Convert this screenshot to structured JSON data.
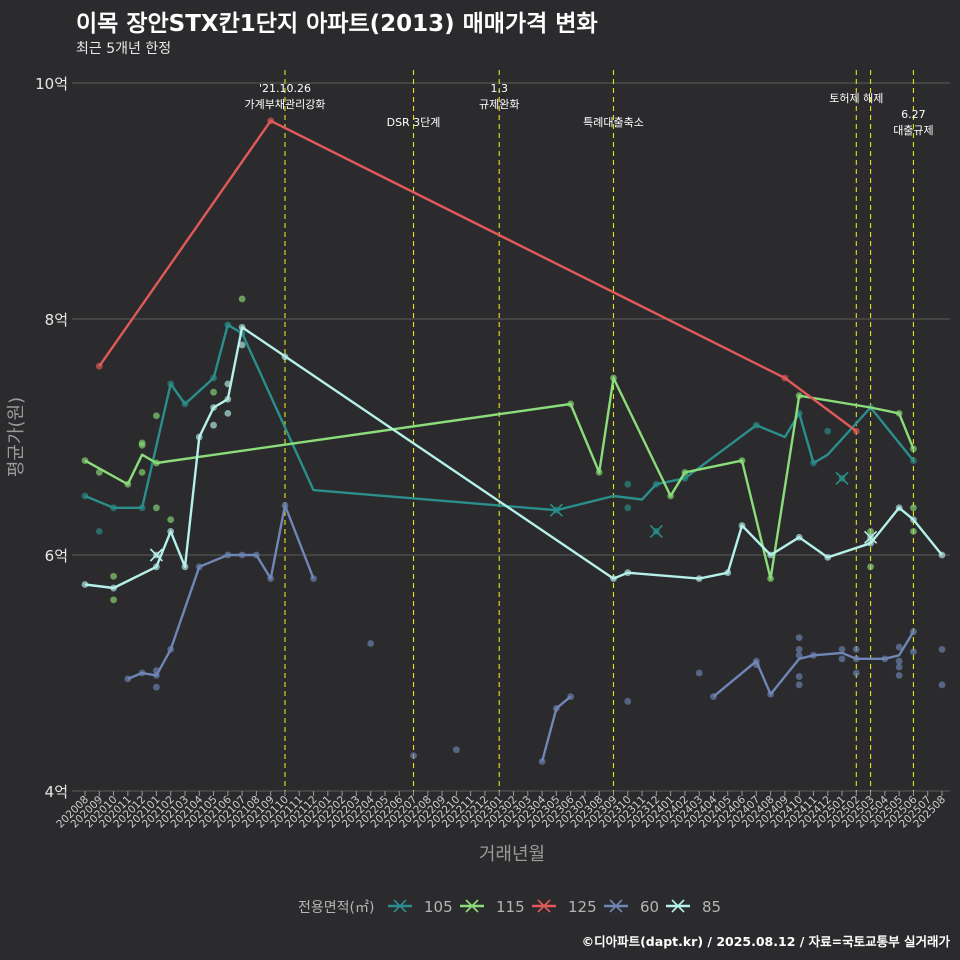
{
  "title": "이목 장안STX칸1단지 아파트(2013) 매매가격 변화",
  "subtitle": "최근 5개년 한정",
  "caption": "©디아파트(dapt.kr) / 2025.08.12 / 자료=국토교통부 실거래가",
  "colors": {
    "background": "#2b2a2c",
    "grid": "#5e5e5e",
    "event_line": "#e8e21c",
    "series_105": "#2a8f8c",
    "series_115": "#8bdc7a",
    "series_125": "#e05a5a",
    "series_60": "#6f86b6",
    "series_85": "#b6f0ea"
  },
  "chart_data": {
    "type": "line",
    "title": "이목 장안STX칸1단지 아파트(2013) 매매가격 변화",
    "xlabel": "거래년월",
    "ylabel": "평균가(원)",
    "ylim": [
      4,
      10
    ],
    "yticks": [
      4,
      6,
      8,
      10
    ],
    "ytick_labels": [
      "4억",
      "6억",
      "8억",
      "10억"
    ],
    "x_categories": [
      "202008",
      "202009",
      "202010",
      "202011",
      "202012",
      "202101",
      "202102",
      "202103",
      "202104",
      "202105",
      "202106",
      "202107",
      "202108",
      "202109",
      "202110",
      "202111",
      "202112",
      "202201",
      "202202",
      "202203",
      "202204",
      "202205",
      "202206",
      "202207",
      "202208",
      "202209",
      "202210",
      "202211",
      "202212",
      "202301",
      "202302",
      "202303",
      "202304",
      "202305",
      "202306",
      "202307",
      "202308",
      "202309",
      "202310",
      "202311",
      "202312",
      "202401",
      "202402",
      "202403",
      "202404",
      "202405",
      "202406",
      "202407",
      "202408",
      "202409",
      "202410",
      "202411",
      "202412",
      "202501",
      "202502",
      "202503",
      "202504",
      "202505",
      "202506",
      "202507",
      "202508"
    ],
    "legend_title": "전용면적(㎡)",
    "events": [
      {
        "x": "202110",
        "label_lines": [
          "'21.10.26",
          "가계부채관리강화"
        ],
        "label_level": 1
      },
      {
        "x": "202207",
        "label_lines": [
          "DSR 3단계"
        ],
        "label_level": 2
      },
      {
        "x": "202301",
        "label_lines": [
          "1.3",
          "규제완화"
        ],
        "label_level": 1
      },
      {
        "x": "202309",
        "label_lines": [
          "특례대출축소"
        ],
        "label_level": 2
      },
      {
        "x": "202502",
        "label_lines": [
          "토허제 해제"
        ],
        "label_level": 1.5
      },
      {
        "x": "202503",
        "label_lines": [],
        "label_level": 0
      },
      {
        "x": "202506",
        "label_lines": [
          "6.27",
          "대출규제"
        ],
        "label_level": 2
      }
    ],
    "series": [
      {
        "name": "105",
        "color": "#2a8f8c",
        "line": [
          [
            "202008",
            6.5
          ],
          [
            "202010",
            6.4
          ],
          [
            "202012",
            6.4
          ],
          [
            "202102",
            7.45
          ],
          [
            "202103",
            7.28
          ],
          [
            "202105",
            7.5
          ],
          [
            "202106",
            7.95
          ],
          [
            "202107",
            7.88
          ],
          [
            "202112",
            6.55
          ],
          [
            "202305",
            6.38
          ],
          [
            "202309",
            6.5
          ],
          [
            "202311",
            6.47
          ],
          [
            "202312",
            6.6
          ],
          [
            "202402",
            6.65
          ],
          [
            "202407",
            7.1
          ],
          [
            "202409",
            7.0
          ],
          [
            "202410",
            7.2
          ],
          [
            "202411",
            6.78
          ],
          [
            "202412",
            6.85
          ],
          [
            "202503",
            7.25
          ],
          [
            "202506",
            6.8
          ]
        ],
        "points": [
          [
            "202008",
            6.5
          ],
          [
            "202009",
            6.2
          ],
          [
            "202010",
            6.4
          ],
          [
            "202012",
            6.4
          ],
          [
            "202102",
            7.45
          ],
          [
            "202103",
            7.28
          ],
          [
            "202105",
            7.5
          ],
          [
            "202106",
            7.95
          ],
          [
            "202107",
            7.88
          ],
          [
            "202305",
            6.38
          ],
          [
            "202310",
            6.6
          ],
          [
            "202310",
            6.4
          ],
          [
            "202312",
            6.6
          ],
          [
            "202312",
            6.2
          ],
          [
            "202402",
            6.65
          ],
          [
            "202407",
            7.1
          ],
          [
            "202410",
            7.2
          ],
          [
            "202411",
            6.78
          ],
          [
            "202412",
            7.05
          ],
          [
            "202501",
            6.65
          ],
          [
            "202503",
            7.25
          ],
          [
            "202506",
            6.8
          ]
        ],
        "crosses": [
          [
            "202305",
            6.38
          ],
          [
            "202312",
            6.2
          ],
          [
            "202501",
            6.65
          ]
        ]
      },
      {
        "name": "115",
        "color": "#8bdc7a",
        "line": [
          [
            "202008",
            6.8
          ],
          [
            "202011",
            6.6
          ],
          [
            "202012",
            6.85
          ],
          [
            "202101",
            6.78
          ],
          [
            "202306",
            7.28
          ],
          [
            "202308",
            6.7
          ],
          [
            "202309",
            7.5
          ],
          [
            "202401",
            6.5
          ],
          [
            "202402",
            6.7
          ],
          [
            "202406",
            6.8
          ],
          [
            "202408",
            5.8
          ],
          [
            "202410",
            7.35
          ],
          [
            "202503",
            7.25
          ],
          [
            "202505",
            7.2
          ],
          [
            "202506",
            6.9
          ]
        ],
        "points": [
          [
            "202008",
            6.8
          ],
          [
            "202009",
            6.7
          ],
          [
            "202010",
            5.82
          ],
          [
            "202010",
            5.62
          ],
          [
            "202011",
            6.6
          ],
          [
            "202012",
            6.95
          ],
          [
            "202012",
            6.93
          ],
          [
            "202012",
            6.7
          ],
          [
            "202101",
            7.18
          ],
          [
            "202101",
            6.4
          ],
          [
            "202101",
            6.78
          ],
          [
            "202102",
            6.3
          ],
          [
            "202105",
            7.38
          ],
          [
            "202107",
            8.17
          ],
          [
            "202306",
            7.28
          ],
          [
            "202308",
            6.7
          ],
          [
            "202309",
            7.5
          ],
          [
            "202401",
            6.5
          ],
          [
            "202402",
            6.7
          ],
          [
            "202406",
            6.8
          ],
          [
            "202408",
            5.8
          ],
          [
            "202410",
            7.35
          ],
          [
            "202503",
            5.9
          ],
          [
            "202503",
            6.2
          ],
          [
            "202505",
            7.2
          ],
          [
            "202506",
            6.9
          ],
          [
            "202506",
            6.4
          ],
          [
            "202506",
            6.2
          ]
        ],
        "crosses": []
      },
      {
        "name": "125",
        "color": "#e05a5a",
        "line": [
          [
            "202009",
            7.6
          ],
          [
            "202109",
            9.68
          ],
          [
            "202409",
            7.5
          ],
          [
            "202502",
            7.05
          ]
        ],
        "points": [
          [
            "202009",
            7.6
          ],
          [
            "202109",
            9.68
          ],
          [
            "202409",
            7.5
          ],
          [
            "202502",
            7.05
          ]
        ],
        "crosses": []
      },
      {
        "name": "60",
        "color": "#6f86b6",
        "line": [
          [
            "202011",
            4.95
          ],
          [
            "202012",
            5.0
          ],
          [
            "202101",
            4.98
          ],
          [
            "202102",
            5.2
          ],
          [
            "202104",
            5.9
          ],
          [
            "202106",
            6.0
          ],
          [
            "202107",
            6.0
          ],
          [
            "202108",
            6.0
          ],
          [
            "202109",
            5.8
          ],
          [
            "202110",
            6.42
          ],
          [
            "202112",
            5.8
          ]
        ],
        "line2": [
          [
            "202304",
            4.25
          ],
          [
            "202305",
            4.7
          ],
          [
            "202306",
            4.8
          ]
        ],
        "line3": [
          [
            "202404",
            4.8
          ],
          [
            "202407",
            5.1
          ],
          [
            "202408",
            4.82
          ],
          [
            "202410",
            5.12
          ],
          [
            "202411",
            5.15
          ],
          [
            "202501",
            5.17
          ],
          [
            "202502",
            5.12
          ],
          [
            "202504",
            5.12
          ],
          [
            "202505",
            5.15
          ],
          [
            "202506",
            5.35
          ]
        ],
        "points": [
          [
            "202011",
            4.95
          ],
          [
            "202012",
            5.0
          ],
          [
            "202101",
            4.98
          ],
          [
            "202101",
            4.88
          ],
          [
            "202101",
            5.02
          ],
          [
            "202102",
            5.2
          ],
          [
            "202104",
            5.9
          ],
          [
            "202106",
            6.0
          ],
          [
            "202107",
            6.0
          ],
          [
            "202108",
            6.0
          ],
          [
            "202109",
            5.8
          ],
          [
            "202110",
            6.42
          ],
          [
            "202112",
            5.8
          ],
          [
            "202204",
            5.25
          ],
          [
            "202207",
            4.3
          ],
          [
            "202210",
            4.35
          ],
          [
            "202304",
            4.25
          ],
          [
            "202305",
            4.7
          ],
          [
            "202306",
            4.8
          ],
          [
            "202310",
            4.76
          ],
          [
            "202403",
            5.0
          ],
          [
            "202404",
            4.8
          ],
          [
            "202407",
            5.1
          ],
          [
            "202407",
            5.07
          ],
          [
            "202408",
            4.82
          ],
          [
            "202410",
            5.3
          ],
          [
            "202410",
            5.2
          ],
          [
            "202410",
            5.15
          ],
          [
            "202410",
            4.97
          ],
          [
            "202410",
            4.9
          ],
          [
            "202411",
            5.15
          ],
          [
            "202501",
            5.2
          ],
          [
            "202501",
            5.12
          ],
          [
            "202502",
            5.0
          ],
          [
            "202502",
            5.2
          ],
          [
            "202502",
            5.12
          ],
          [
            "202504",
            5.12
          ],
          [
            "202505",
            5.22
          ],
          [
            "202505",
            5.1
          ],
          [
            "202505",
            5.05
          ],
          [
            "202505",
            4.98
          ],
          [
            "202506",
            5.35
          ],
          [
            "202506",
            5.18
          ],
          [
            "202508",
            5.2
          ],
          [
            "202508",
            4.9
          ]
        ],
        "crosses": []
      },
      {
        "name": "85",
        "color": "#b6f0ea",
        "line": [
          [
            "202008",
            5.75
          ],
          [
            "202010",
            5.72
          ],
          [
            "202101",
            5.9
          ],
          [
            "202102",
            6.2
          ],
          [
            "202103",
            5.9
          ],
          [
            "202104",
            7.0
          ],
          [
            "202105",
            7.25
          ],
          [
            "202106",
            7.32
          ],
          [
            "202107",
            7.93
          ],
          [
            "202309",
            5.8
          ],
          [
            "202310",
            5.85
          ],
          [
            "202403",
            5.8
          ],
          [
            "202405",
            5.85
          ],
          [
            "202406",
            6.25
          ],
          [
            "202408",
            6.0
          ],
          [
            "202410",
            6.15
          ],
          [
            "202412",
            5.98
          ],
          [
            "202503",
            6.1
          ],
          [
            "202505",
            6.4
          ],
          [
            "202506",
            6.3
          ],
          [
            "202508",
            6.0
          ]
        ],
        "points": [
          [
            "202008",
            5.75
          ],
          [
            "202010",
            5.72
          ],
          [
            "202101",
            6.0
          ],
          [
            "202101",
            5.9
          ],
          [
            "202102",
            6.2
          ],
          [
            "202103",
            5.9
          ],
          [
            "202104",
            7.0
          ],
          [
            "202105",
            7.1
          ],
          [
            "202105",
            7.25
          ],
          [
            "202106",
            7.2
          ],
          [
            "202106",
            7.45
          ],
          [
            "202106",
            7.32
          ],
          [
            "202107",
            7.78
          ],
          [
            "202107",
            7.93
          ],
          [
            "202110",
            7.68
          ],
          [
            "202309",
            5.8
          ],
          [
            "202310",
            5.85
          ],
          [
            "202403",
            5.8
          ],
          [
            "202405",
            5.85
          ],
          [
            "202406",
            6.25
          ],
          [
            "202408",
            6.0
          ],
          [
            "202410",
            6.15
          ],
          [
            "202412",
            5.98
          ],
          [
            "202503",
            6.1
          ],
          [
            "202503",
            6.15
          ],
          [
            "202505",
            6.4
          ],
          [
            "202506",
            6.3
          ],
          [
            "202508",
            6.0
          ]
        ],
        "crosses": [
          [
            "202101",
            6.0
          ],
          [
            "202503",
            6.15
          ]
        ]
      }
    ],
    "legend": [
      {
        "label": "105",
        "color": "#2a8f8c"
      },
      {
        "label": "115",
        "color": "#8bdc7a"
      },
      {
        "label": "125",
        "color": "#e05a5a"
      },
      {
        "label": "60",
        "color": "#6f86b6"
      },
      {
        "label": "85",
        "color": "#b6f0ea"
      }
    ]
  }
}
